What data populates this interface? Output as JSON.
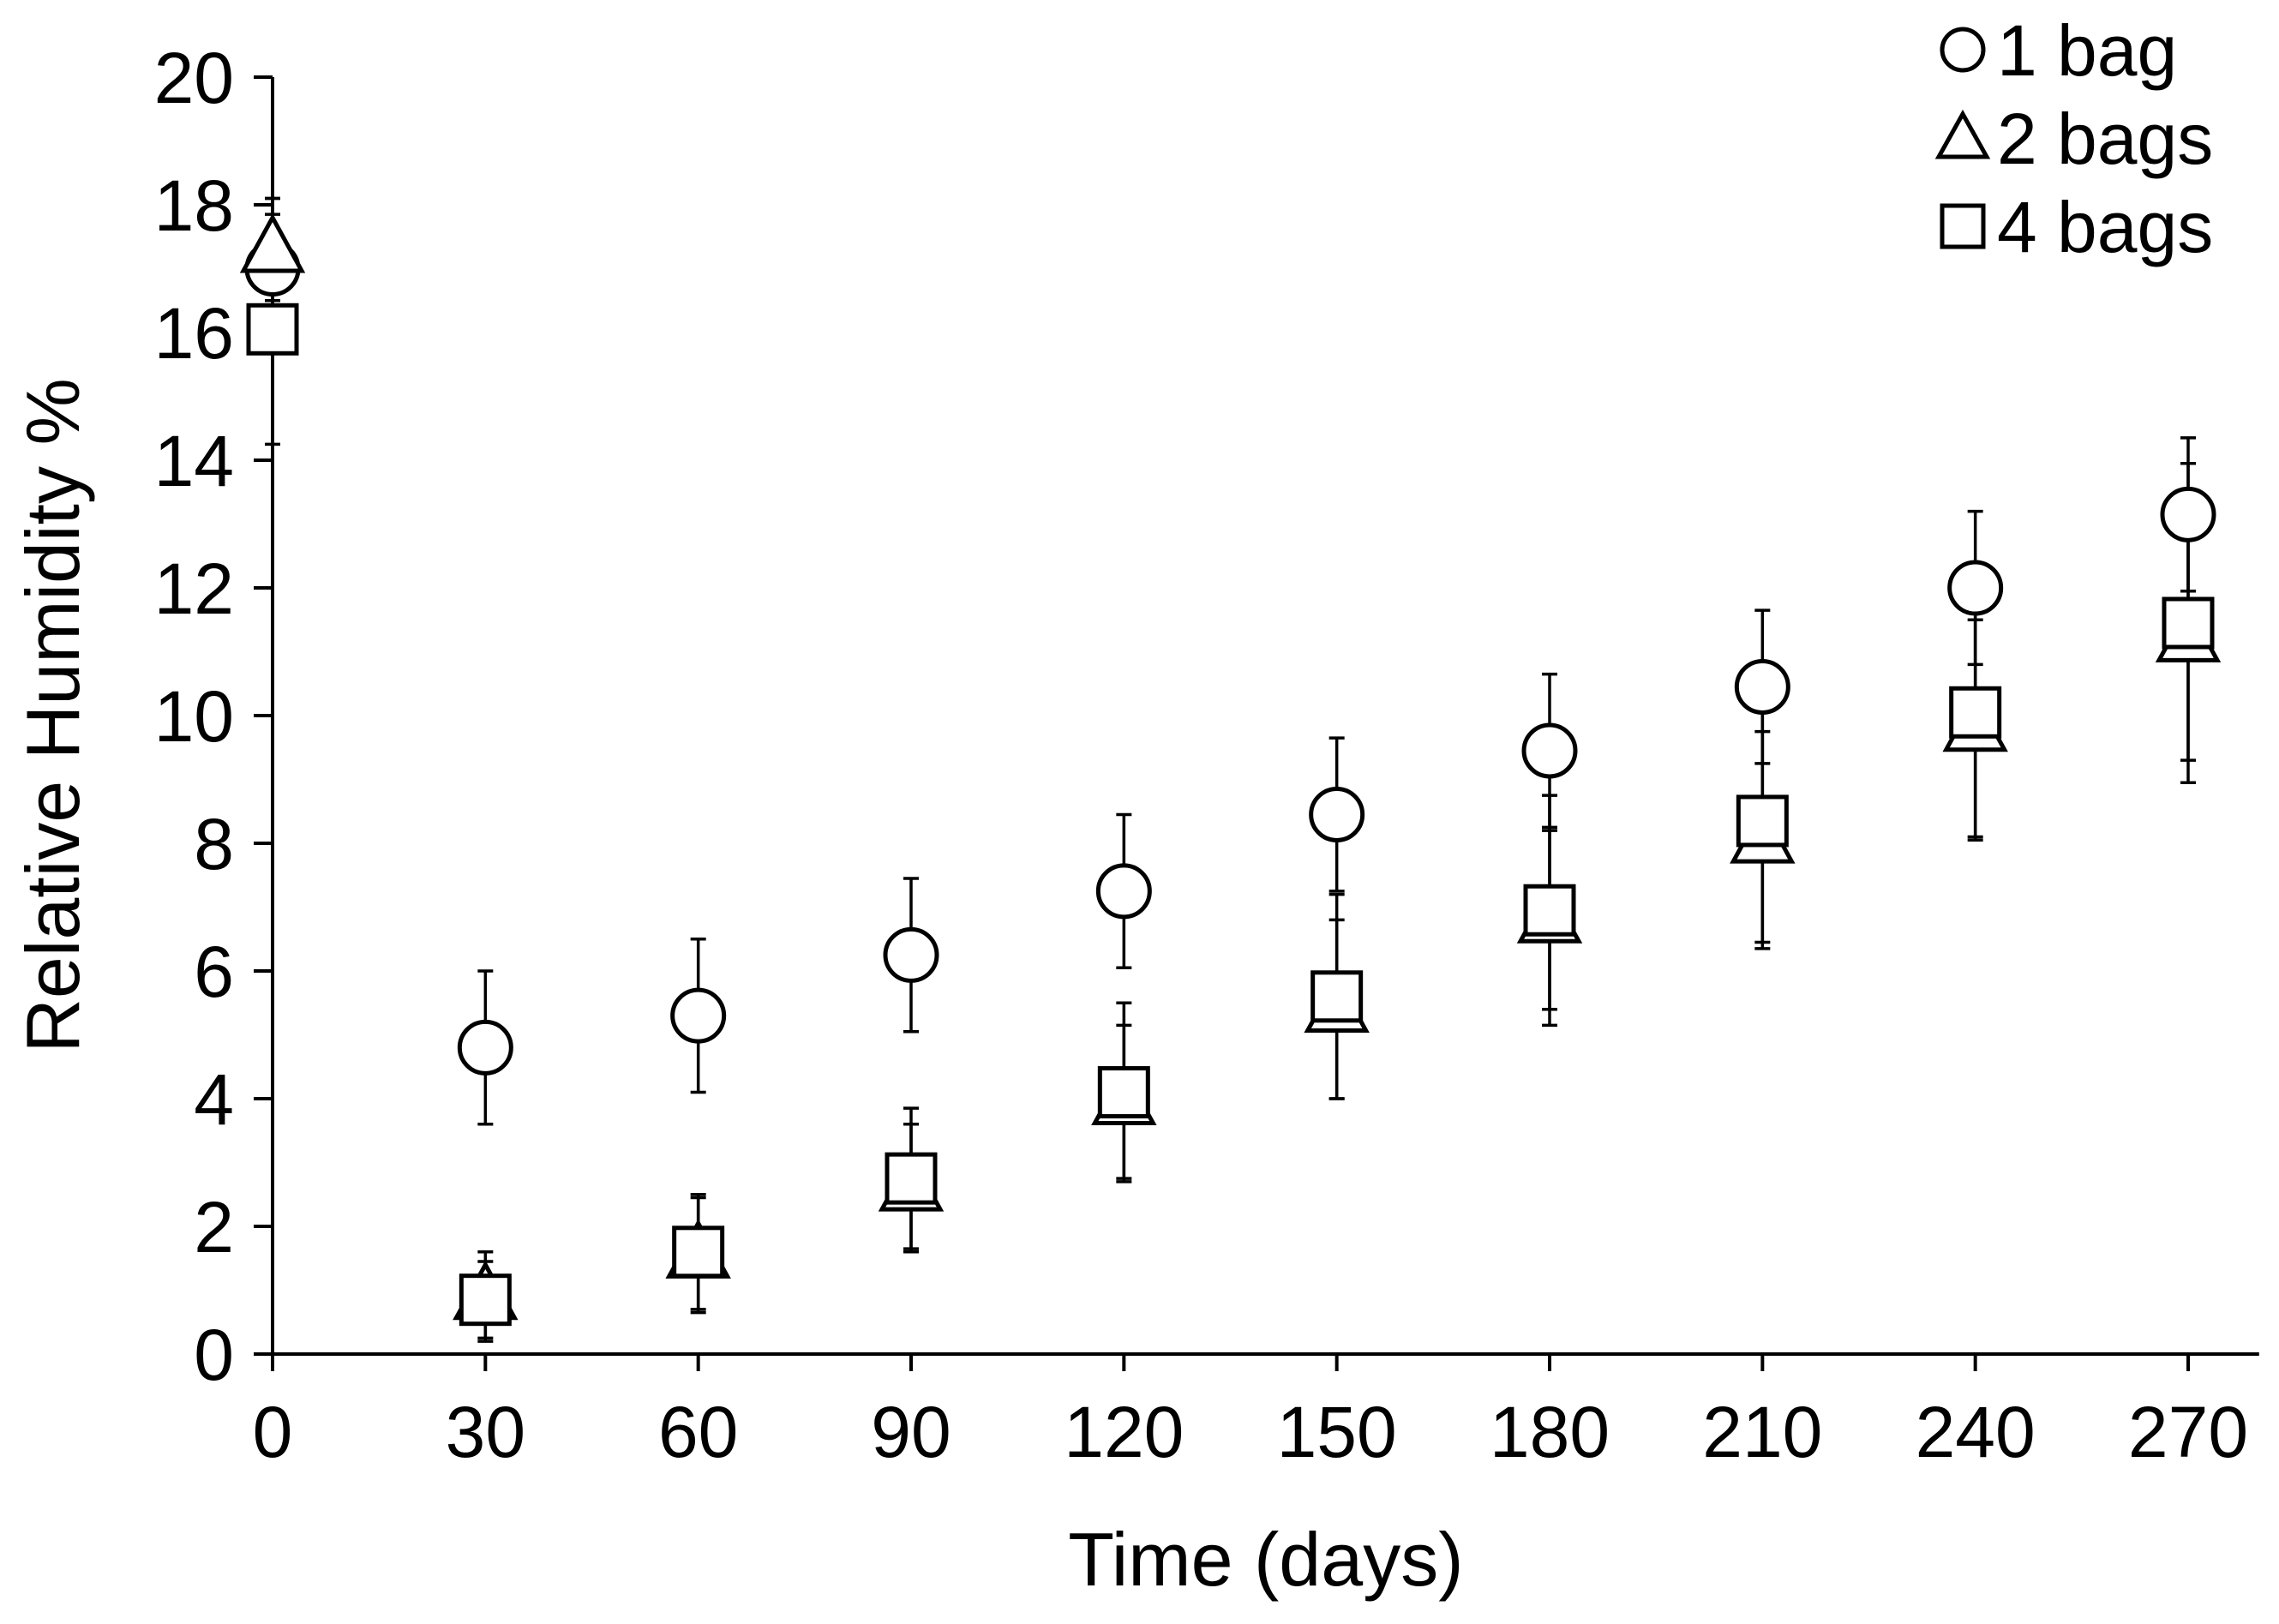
{
  "chart_data": {
    "type": "scatter",
    "xlabel": "Time (days)",
    "ylabel": "Relative Humidity %",
    "xlim": [
      0,
      280
    ],
    "ylim": [
      0,
      20
    ],
    "x_ticks": [
      0,
      30,
      60,
      90,
      120,
      150,
      180,
      210,
      240,
      270
    ],
    "y_ticks": [
      0,
      2,
      4,
      6,
      8,
      10,
      12,
      14,
      16,
      18,
      20
    ],
    "grid": false,
    "legend_position": "top-right",
    "series": [
      {
        "name": "1 bag",
        "marker": "circle",
        "x": [
          0,
          30,
          60,
          90,
          120,
          150,
          180,
          210,
          240,
          270
        ],
        "y": [
          17.0,
          4.8,
          5.3,
          6.25,
          7.25,
          8.45,
          9.45,
          10.45,
          12.0,
          13.15
        ],
        "err": [
          1.1,
          1.2,
          1.2,
          1.2,
          1.2,
          1.2,
          1.2,
          1.2,
          1.2,
          1.2
        ]
      },
      {
        "name": "2 bags",
        "marker": "triangle",
        "x": [
          0,
          30,
          60,
          90,
          120,
          150,
          180,
          210,
          240,
          270
        ],
        "y": [
          17.3,
          0.9,
          1.55,
          2.6,
          3.95,
          5.4,
          6.8,
          8.05,
          9.8,
          11.2
        ],
        "err": [
          0.8,
          0.7,
          0.9,
          1.0,
          1.2,
          1.4,
          1.4,
          1.7,
          1.7,
          1.9
        ]
      },
      {
        "name": "4 bags",
        "marker": "square",
        "x": [
          0,
          30,
          60,
          90,
          120,
          150,
          180,
          210,
          240,
          270
        ],
        "y": [
          16.05,
          0.85,
          1.6,
          2.75,
          4.1,
          5.6,
          6.95,
          8.35,
          10.05,
          11.45
        ],
        "err": [
          1.8,
          0.6,
          0.9,
          1.1,
          1.4,
          1.6,
          1.8,
          1.9,
          2.0,
          2.5
        ]
      }
    ]
  }
}
